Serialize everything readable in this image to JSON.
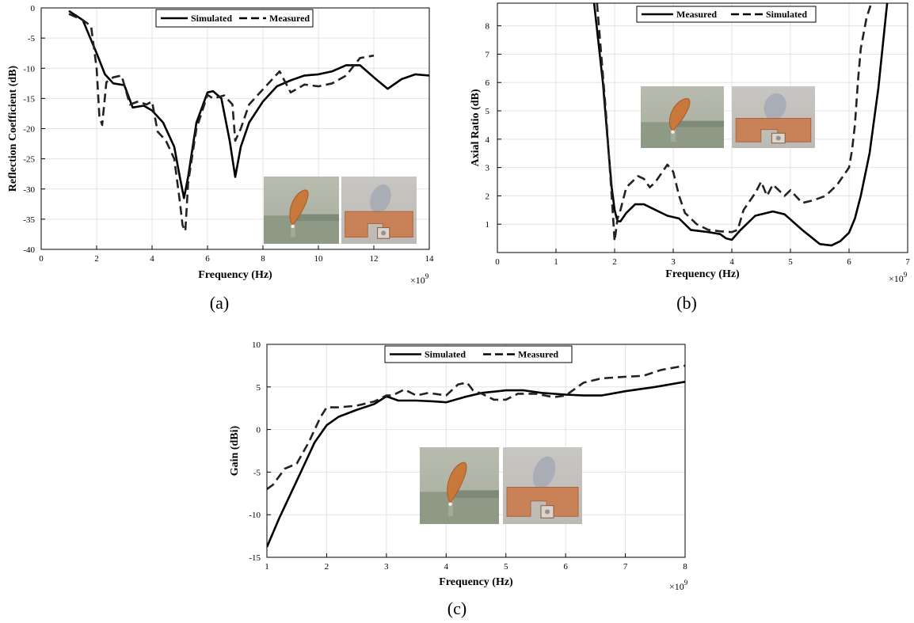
{
  "chart_data": [
    {
      "type": "line",
      "caption": "(a)",
      "xlabel": "Frequency (Hz)",
      "ylabel": "Reflection Coefficient (dB)",
      "x_multiplier": "×10",
      "x_exponent": "9",
      "xlim": [
        0,
        14
      ],
      "ylim": [
        -40,
        0
      ],
      "xticks": [
        "0",
        "2",
        "4",
        "6",
        "8",
        "10",
        "12",
        "14"
      ],
      "yticks": [
        "-40",
        "-35",
        "-30",
        "-25",
        "-20",
        "-15",
        "-10",
        "-5",
        "0"
      ],
      "grid": true,
      "legend_position": "top-center",
      "series": [
        {
          "name": "Simulated",
          "style": "solid",
          "x": [
            1,
            1.5,
            2,
            2.3,
            2.6,
            3,
            3.3,
            3.7,
            4,
            4.4,
            4.8,
            5,
            5.15,
            5.3,
            5.6,
            6,
            6.2,
            6.5,
            6.8,
            7,
            7.2,
            7.5,
            8,
            8.5,
            9,
            9.5,
            10,
            10.5,
            11,
            11.5,
            12,
            12.5,
            13,
            13.5,
            14
          ],
          "y": [
            -0.5,
            -2,
            -7.5,
            -11,
            -12.5,
            -12.8,
            -16.5,
            -16.2,
            -17,
            -19,
            -23,
            -28,
            -31.5,
            -28,
            -19,
            -14,
            -13.8,
            -15,
            -22,
            -28,
            -23,
            -19,
            -15.5,
            -13,
            -12,
            -11.2,
            -11,
            -10.5,
            -9.5,
            -9.5,
            -11.5,
            -13.4,
            -11.8,
            -11,
            -11.2
          ]
        },
        {
          "name": "Measured",
          "style": "dashed",
          "x": [
            1,
            1.5,
            1.8,
            2,
            2.1,
            2.2,
            2.35,
            2.6,
            2.9,
            3.2,
            3.5,
            3.8,
            4,
            4.2,
            4.5,
            4.8,
            5,
            5.1,
            5.2,
            5.3,
            5.6,
            6,
            6.2,
            6.6,
            6.9,
            7,
            7.2,
            7.5,
            8,
            8.3,
            8.6,
            9,
            9.5,
            10,
            10.5,
            11,
            11.5,
            12
          ],
          "y": [
            -1,
            -2,
            -3,
            -10,
            -18,
            -19.4,
            -12.3,
            -11.5,
            -11.2,
            -16,
            -15.5,
            -16,
            -15.5,
            -20.5,
            -22,
            -25,
            -32,
            -36,
            -37,
            -29,
            -20,
            -14.4,
            -15,
            -14.5,
            -16,
            -22,
            -20,
            -16,
            -13.5,
            -12,
            -10.5,
            -14,
            -12.7,
            -13,
            -12.5,
            -11.2,
            -8.3,
            -7.9
          ]
        }
      ]
    },
    {
      "type": "line",
      "caption": "(b)",
      "xlabel": "Frequency (Hz)",
      "ylabel": "Axial Ratio (dB)",
      "x_multiplier": "×10",
      "x_exponent": "9",
      "xlim": [
        0,
        7
      ],
      "ylim": [
        0,
        8.8
      ],
      "xticks": [
        "0",
        "1",
        "2",
        "3",
        "4",
        "5",
        "6",
        "7"
      ],
      "yticks": [
        "1",
        "2",
        "3",
        "4",
        "5",
        "6",
        "7",
        "8"
      ],
      "grid": true,
      "legend_position": "top-center",
      "series": [
        {
          "name": "Measured",
          "style": "solid",
          "x": [
            1.65,
            1.8,
            1.9,
            1.95,
            2,
            2.05,
            2.1,
            2.2,
            2.35,
            2.5,
            2.7,
            2.9,
            3.1,
            3.3,
            3.6,
            3.8,
            3.9,
            4,
            4.15,
            4.4,
            4.7,
            4.9,
            5.2,
            5.5,
            5.7,
            5.85,
            6,
            6.1,
            6.2,
            6.35,
            6.5,
            6.65
          ],
          "y": [
            8.8,
            6,
            3.5,
            2.3,
            1.5,
            1.1,
            1.1,
            1.4,
            1.7,
            1.7,
            1.5,
            1.3,
            1.2,
            0.8,
            0.72,
            0.65,
            0.5,
            0.45,
            0.8,
            1.3,
            1.45,
            1.35,
            0.8,
            0.3,
            0.25,
            0.4,
            0.7,
            1.2,
            2,
            3.5,
            5.8,
            8.8
          ]
        },
        {
          "name": "Simulated",
          "style": "dashed",
          "x": [
            1.7,
            1.85,
            1.95,
            2,
            2.05,
            2.1,
            2.2,
            2.4,
            2.5,
            2.6,
            2.7,
            2.8,
            2.9,
            3,
            3.1,
            3.2,
            3.4,
            3.6,
            3.8,
            4,
            4.1,
            4.2,
            4.4,
            4.5,
            4.6,
            4.7,
            4.9,
            5,
            5.2,
            5.4,
            5.6,
            5.8,
            6,
            6.05,
            6.1,
            6.15,
            6.2,
            6.3,
            6.38
          ],
          "y": [
            8.8,
            5,
            2,
            0.4,
            1.2,
            1.5,
            2.3,
            2.7,
            2.6,
            2.3,
            2.5,
            2.8,
            3.1,
            2.85,
            2,
            1.4,
            1.0,
            0.8,
            0.75,
            0.72,
            0.8,
            1.5,
            2.1,
            2.5,
            2.0,
            2.4,
            2.0,
            2.2,
            1.75,
            1.85,
            2.0,
            2.4,
            3.0,
            3.6,
            4.5,
            6,
            7.2,
            8.3,
            8.8
          ]
        }
      ]
    },
    {
      "type": "line",
      "caption": "(c)",
      "xlabel": "Frequency (Hz)",
      "ylabel": "Gain (dBi)",
      "x_multiplier": "×10",
      "x_exponent": "9",
      "xlim": [
        1,
        8
      ],
      "ylim": [
        -15,
        10
      ],
      "xticks": [
        "1",
        "2",
        "3",
        "4",
        "5",
        "6",
        "7",
        "8"
      ],
      "yticks": [
        "-15",
        "-10",
        "-5",
        "0",
        "5",
        "10"
      ],
      "grid": true,
      "legend_position": "top-center",
      "series": [
        {
          "name": "Simulated",
          "style": "solid",
          "x": [
            1,
            1.2,
            1.4,
            1.6,
            1.8,
            2,
            2.2,
            2.5,
            2.8,
            3,
            3.2,
            3.5,
            3.8,
            4,
            4.3,
            4.6,
            5,
            5.3,
            5.6,
            6,
            6.3,
            6.6,
            7,
            7.5,
            8
          ],
          "y": [
            -13.8,
            -10.5,
            -7.5,
            -4.5,
            -1.5,
            0.5,
            1.5,
            2.3,
            3.0,
            3.9,
            3.4,
            3.4,
            3.3,
            3.2,
            3.8,
            4.3,
            4.6,
            4.6,
            4.3,
            4.1,
            4.0,
            4.0,
            4.5,
            5.0,
            5.6
          ]
        },
        {
          "name": "Measured",
          "style": "dashed",
          "x": [
            1,
            1.1,
            1.3,
            1.5,
            1.7,
            1.9,
            2,
            2.2,
            2.5,
            2.8,
            3,
            3.1,
            3.3,
            3.5,
            3.7,
            4,
            4.2,
            4.35,
            4.45,
            4.6,
            4.8,
            5,
            5.2,
            5.5,
            5.8,
            6,
            6.3,
            6.6,
            7,
            7.3,
            7.6,
            8
          ],
          "y": [
            -7,
            -6.5,
            -4.6,
            -4,
            -1.5,
            1.5,
            2.6,
            2.6,
            2.8,
            3.3,
            4.0,
            4.0,
            4.7,
            4.0,
            4.3,
            4.0,
            5.3,
            5.5,
            4.6,
            4.2,
            3.5,
            3.5,
            4.2,
            4.2,
            3.8,
            4.0,
            5.5,
            6.0,
            6.2,
            6.3,
            7.0,
            7.5
          ]
        }
      ]
    }
  ]
}
